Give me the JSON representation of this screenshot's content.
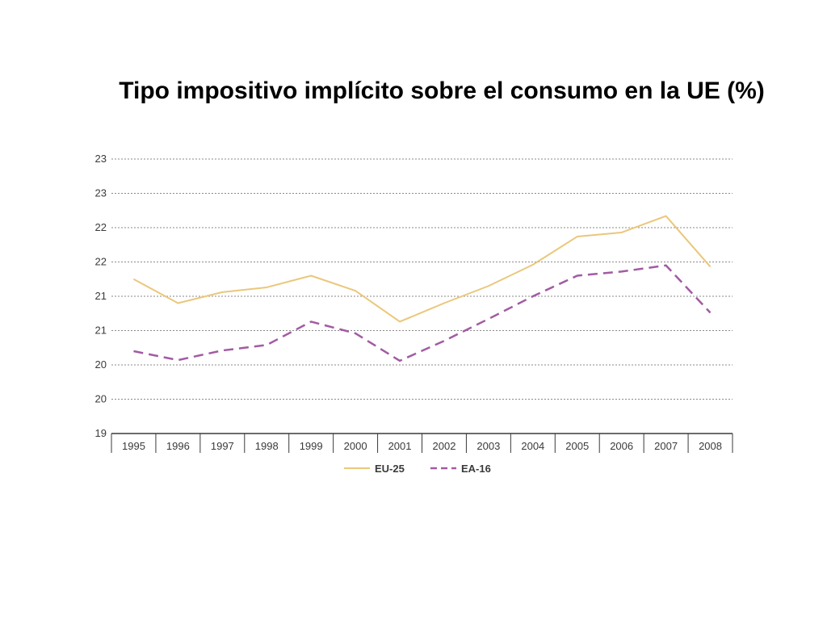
{
  "slide": {
    "title": "Tipo impositivo implícito sobre el consumo en la UE (%)"
  },
  "chart_data": {
    "type": "line",
    "title": "Tipo impositivo implícito sobre el consumo en la UE (%)",
    "xlabel": "",
    "ylabel": "",
    "x": [
      "1995",
      "1996",
      "1997",
      "1998",
      "1999",
      "2000",
      "2001",
      "2002",
      "2003",
      "2004",
      "2005",
      "2006",
      "2007",
      "2008"
    ],
    "ylim": [
      19,
      23
    ],
    "y_ticks": [
      19,
      19.5,
      20,
      20.5,
      21,
      21.5,
      22,
      22.5,
      23
    ],
    "y_tick_labels": [
      "19",
      "20",
      "20",
      "21",
      "21",
      "22",
      "22",
      "23",
      "23"
    ],
    "grid": true,
    "legend_position": "bottom",
    "series": [
      {
        "name": "EU-25",
        "color": "#EAC77B",
        "dash": "solid",
        "values": [
          21.25,
          20.9,
          21.06,
          21.13,
          21.3,
          21.08,
          20.63,
          20.9,
          21.15,
          21.46,
          21.87,
          21.93,
          22.17,
          21.43
        ]
      },
      {
        "name": "EA-16",
        "color": "#A25BA3",
        "dash": "dashed",
        "values": [
          20.2,
          20.07,
          20.21,
          20.29,
          20.63,
          20.46,
          20.06,
          20.35,
          20.67,
          21.0,
          21.3,
          21.36,
          21.45,
          20.76
        ]
      }
    ]
  }
}
